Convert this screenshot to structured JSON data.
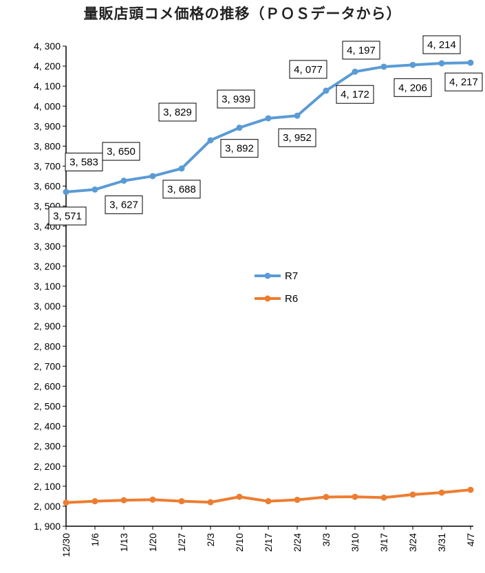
{
  "chart_data": {
    "type": "line",
    "title": "量販店頭コメ価格の推移（ＰＯＳデータから）",
    "categories": [
      "12/30",
      "1/6",
      "1/13",
      "1/20",
      "1/27",
      "2/3",
      "2/10",
      "2/17",
      "2/24",
      "3/3",
      "3/10",
      "3/17",
      "3/24",
      "3/31",
      "4/7"
    ],
    "series": [
      {
        "name": "R7",
        "color": "#5B9BD5",
        "values": [
          3571,
          3583,
          3627,
          3650,
          3688,
          3829,
          3892,
          3939,
          3952,
          4077,
          4172,
          4197,
          4206,
          4214,
          4217
        ],
        "labels": [
          "3, 571",
          "3, 583",
          "3, 627",
          "3, 650",
          "3, 688",
          "3, 829",
          "3, 892",
          "3, 939",
          "3, 952",
          "4, 077",
          "4, 172",
          "4, 197",
          "4, 206",
          "4, 214",
          "4, 217"
        ]
      },
      {
        "name": "R6",
        "color": "#ED7D31",
        "values": [
          2018,
          2025,
          2030,
          2033,
          2025,
          2020,
          2047,
          2025,
          2032,
          2046,
          2047,
          2043,
          2058,
          2068,
          2082
        ]
      }
    ],
    "ylim": [
      1900,
      4300
    ],
    "ytick_step": 100,
    "grid": false,
    "legend_position": "center"
  }
}
